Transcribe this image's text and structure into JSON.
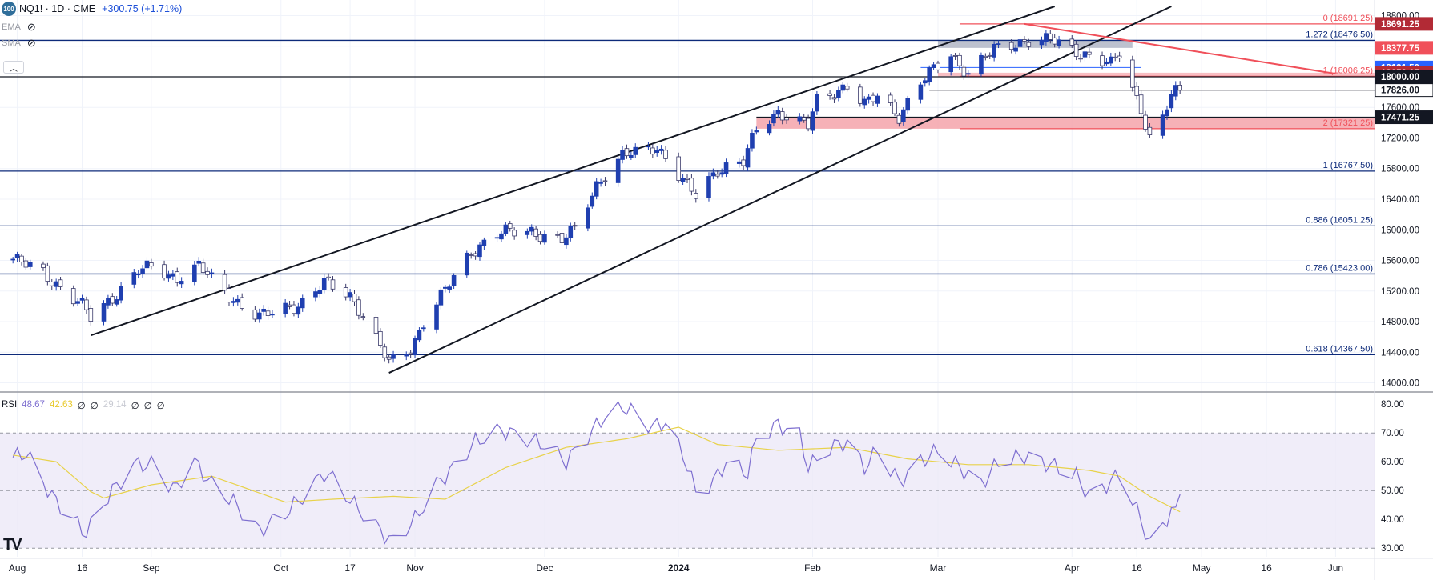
{
  "header": {
    "icon_text": "100",
    "symbol": "NQ1! · 1D · CME",
    "change": "+300.75 (+1.71%)"
  },
  "indicators": {
    "ema": "EMA",
    "sma": "SMA",
    "eye_icon": "eye-off-icon",
    "collapse_icon": "chevron-up-icon"
  },
  "rsi_legend": {
    "name": "RSI",
    "value": "48.67",
    "ma": "42.63",
    "z1": "∅",
    "z2": "∅",
    "v3": "29.14",
    "z3": "∅",
    "z4": "∅",
    "z5": "∅"
  },
  "logo": "TV",
  "colors": {
    "candle_up": "#1f3fb0",
    "candle_down_fill": "#ffffff",
    "candle_down_border": "#3a3a6a",
    "fib_line": "#0d2a7a",
    "red_line": "#f0505a",
    "red_zone": "#f5a3aa",
    "grey_zone": "#9aa0b4",
    "rsi_line": "#7e6fd0",
    "rsi_ma": "#e8d24a",
    "rsi_band": "#ece9f7"
  },
  "chart_data": [
    {
      "type": "candlestick",
      "title": "NQ1! · 1D · CME",
      "y_axis_ticks": [
        14000,
        14400,
        14800,
        15200,
        15600,
        16000,
        16400,
        16800,
        17200,
        17600,
        18000,
        18400,
        18800
      ],
      "y_axis_tick_labels": [
        "14000.00",
        "14400.00",
        "14800.00",
        "15200.00",
        "15600.00",
        "16000.00",
        "16400.00",
        "16800.00",
        "17200.00",
        "17600.00",
        "18000.00",
        "18400.00",
        "18800.00"
      ],
      "ylim": [
        13880,
        18920
      ],
      "x_axis_labels": [
        {
          "label": "Aug",
          "date": "2023-08-01"
        },
        {
          "label": "16",
          "date": "2023-08-16"
        },
        {
          "label": "Sep",
          "date": "2023-09-01"
        },
        {
          "label": "Oct",
          "date": "2023-10-01"
        },
        {
          "label": "17",
          "date": "2023-10-17"
        },
        {
          "label": "Nov",
          "date": "2023-11-01"
        },
        {
          "label": "Dec",
          "date": "2023-12-01"
        },
        {
          "label": "2024",
          "date": "2024-01-01"
        },
        {
          "label": "Feb",
          "date": "2024-02-01"
        },
        {
          "label": "Mar",
          "date": "2024-03-01"
        },
        {
          "label": "Apr",
          "date": "2024-04-01"
        },
        {
          "label": "16",
          "date": "2024-04-16"
        },
        {
          "label": "May",
          "date": "2024-05-01"
        },
        {
          "label": "16",
          "date": "2024-05-16"
        },
        {
          "label": "Jun",
          "date": "2024-06-01"
        }
      ],
      "xlim": [
        "2023-07-28",
        "2024-06-10"
      ],
      "price_path": [
        [
          "2023-07-28",
          15700
        ],
        [
          "2023-08-02",
          15560
        ],
        [
          "2023-08-07",
          15450
        ],
        [
          "2023-08-11",
          15250
        ],
        [
          "2023-08-16",
          15000
        ],
        [
          "2023-08-18",
          14850
        ],
        [
          "2023-08-23",
          15120
        ],
        [
          "2023-08-29",
          15460
        ],
        [
          "2023-09-01",
          15500
        ],
        [
          "2023-09-07",
          15380
        ],
        [
          "2023-09-12",
          15520
        ],
        [
          "2023-09-15",
          15350
        ],
        [
          "2023-09-20",
          15100
        ],
        [
          "2023-09-26",
          14850
        ],
        [
          "2023-10-02",
          14980
        ],
        [
          "2023-10-06",
          15050
        ],
        [
          "2023-10-11",
          15300
        ],
        [
          "2023-10-13",
          15250
        ],
        [
          "2023-10-17",
          15150
        ],
        [
          "2023-10-20",
          14900
        ],
        [
          "2023-10-26",
          14250
        ],
        [
          "2023-10-31",
          14450
        ],
        [
          "2023-11-03",
          14800
        ],
        [
          "2023-11-08",
          15200
        ],
        [
          "2023-11-14",
          15720
        ],
        [
          "2023-11-20",
          15950
        ],
        [
          "2023-11-28",
          15990
        ],
        [
          "2023-12-05",
          15850
        ],
        [
          "2023-12-08",
          16000
        ],
        [
          "2023-12-13",
          16600
        ],
        [
          "2023-12-19",
          16950
        ],
        [
          "2023-12-27",
          17100
        ],
        [
          "2024-01-03",
          16550
        ],
        [
          "2024-01-05",
          16450
        ],
        [
          "2024-01-10",
          16800
        ],
        [
          "2024-01-16",
          16880
        ],
        [
          "2024-01-19",
          17300
        ],
        [
          "2024-01-24",
          17550
        ],
        [
          "2024-01-31",
          17350
        ],
        [
          "2024-02-02",
          17680
        ],
        [
          "2024-02-09",
          17900
        ],
        [
          "2024-02-13",
          17620
        ],
        [
          "2024-02-16",
          17750
        ],
        [
          "2024-02-21",
          17500
        ],
        [
          "2024-02-26",
          17920
        ],
        [
          "2024-03-04",
          18300
        ],
        [
          "2024-03-08",
          18050
        ],
        [
          "2024-03-14",
          18350
        ],
        [
          "2024-03-21",
          18480
        ],
        [
          "2024-03-28",
          18460
        ],
        [
          "2024-04-04",
          18300
        ],
        [
          "2024-04-10",
          18150
        ],
        [
          "2024-04-12",
          18300
        ],
        [
          "2024-04-15",
          17850
        ],
        [
          "2024-04-17",
          17600
        ],
        [
          "2024-04-19",
          17200
        ],
        [
          "2024-04-22",
          17450
        ],
        [
          "2024-04-24",
          17750
        ],
        [
          "2024-04-26",
          17826
        ]
      ],
      "horizontal_levels": [
        {
          "label": "0 (18691.25)",
          "value": 18691.25,
          "color": "red"
        },
        {
          "label": "1.272 (18476.50)",
          "value": 18476.5,
          "color": "blue"
        },
        {
          "label": "1 (18006.25)",
          "value": 18006.25,
          "color": "red"
        },
        {
          "label": "2 (17321.25)",
          "value": 17321.25,
          "color": "red"
        },
        {
          "label": "1 (16767.50)",
          "value": 16767.5,
          "color": "blue"
        },
        {
          "label": "0.886 (16051.25)",
          "value": 16051.25,
          "color": "blue"
        },
        {
          "label": "0.786 (15423.00)",
          "value": 15423.0,
          "color": "blue"
        },
        {
          "label": "0.618 (14367.50)",
          "value": 14367.5,
          "color": "blue"
        }
      ],
      "price_tags": [
        {
          "text": "18691.25",
          "value": 18691.25,
          "bg": "#b22a35"
        },
        {
          "text": "18377.75",
          "value": 18377.75,
          "bg": "#f0505a"
        },
        {
          "text": "18121.50",
          "value": 18121.5,
          "bg": "#2962ff"
        },
        {
          "text": "18053.25",
          "value": 18053.25,
          "bg": "#b22a35"
        },
        {
          "text": "18000.00",
          "value": 18000.0,
          "bg": "#131722"
        },
        {
          "text": "17826.00",
          "value": 17826.0,
          "bg": "#ffffff"
        },
        {
          "text": "17471.25",
          "value": 17471.25,
          "bg": "#131722"
        }
      ]
    },
    {
      "type": "line",
      "title": "RSI",
      "y_axis_ticks": [
        30,
        40,
        50,
        60,
        70,
        80
      ],
      "y_axis_tick_labels": [
        "30.00",
        "40.00",
        "50.00",
        "60.00",
        "70.00",
        "80.00"
      ],
      "ylim": [
        27,
        82
      ],
      "band": [
        30,
        70
      ],
      "rsi_path": [
        [
          "2023-07-28",
          60
        ],
        [
          "2023-08-03",
          63
        ],
        [
          "2023-08-09",
          48
        ],
        [
          "2023-08-14",
          40
        ],
        [
          "2023-08-17",
          35
        ],
        [
          "2023-08-22",
          48
        ],
        [
          "2023-08-28",
          59
        ],
        [
          "2023-09-01",
          59
        ],
        [
          "2023-09-06",
          50
        ],
        [
          "2023-09-11",
          60
        ],
        [
          "2023-09-15",
          52
        ],
        [
          "2023-09-20",
          46
        ],
        [
          "2023-09-26",
          36
        ],
        [
          "2023-10-02",
          42
        ],
        [
          "2023-10-06",
          48
        ],
        [
          "2023-10-11",
          56
        ],
        [
          "2023-10-13",
          54
        ],
        [
          "2023-10-18",
          45
        ],
        [
          "2023-10-24",
          36
        ],
        [
          "2023-10-27",
          32
        ],
        [
          "2023-11-01",
          40
        ],
        [
          "2023-11-06",
          52
        ],
        [
          "2023-11-10",
          58
        ],
        [
          "2023-11-15",
          67
        ],
        [
          "2023-11-21",
          71
        ],
        [
          "2023-11-27",
          68
        ],
        [
          "2023-12-01",
          66
        ],
        [
          "2023-12-06",
          60
        ],
        [
          "2023-12-11",
          69
        ],
        [
          "2023-12-15",
          76
        ],
        [
          "2023-12-20",
          79
        ],
        [
          "2023-12-26",
          72
        ],
        [
          "2023-12-29",
          74
        ],
        [
          "2024-01-03",
          59
        ],
        [
          "2024-01-05",
          49
        ],
        [
          "2024-01-09",
          53
        ],
        [
          "2024-01-12",
          60
        ],
        [
          "2024-01-17",
          56
        ],
        [
          "2024-01-19",
          68
        ],
        [
          "2024-01-24",
          73
        ],
        [
          "2024-01-29",
          69
        ],
        [
          "2024-01-31",
          58
        ],
        [
          "2024-02-05",
          65
        ],
        [
          "2024-02-09",
          67
        ],
        [
          "2024-02-13",
          58
        ],
        [
          "2024-02-16",
          64
        ],
        [
          "2024-02-21",
          53
        ],
        [
          "2024-02-26",
          60
        ],
        [
          "2024-03-01",
          64
        ],
        [
          "2024-03-06",
          58
        ],
        [
          "2024-03-11",
          52
        ],
        [
          "2024-03-15",
          60
        ],
        [
          "2024-03-21",
          62
        ],
        [
          "2024-03-27",
          59
        ],
        [
          "2024-04-02",
          55
        ],
        [
          "2024-04-05",
          48
        ],
        [
          "2024-04-10",
          53
        ],
        [
          "2024-04-12",
          56
        ],
        [
          "2024-04-15",
          46
        ],
        [
          "2024-04-17",
          40
        ],
        [
          "2024-04-19",
          31
        ],
        [
          "2024-04-22",
          38
        ],
        [
          "2024-04-24",
          43
        ],
        [
          "2024-04-25",
          42
        ],
        [
          "2024-04-26",
          48.67
        ]
      ],
      "ma_path": [
        [
          "2023-07-28",
          63
        ],
        [
          "2023-08-10",
          60
        ],
        [
          "2023-08-20",
          47
        ],
        [
          "2023-09-01",
          52
        ],
        [
          "2023-09-15",
          55
        ],
        [
          "2023-10-02",
          46
        ],
        [
          "2023-10-13",
          47
        ],
        [
          "2023-10-27",
          48
        ],
        [
          "2023-11-08",
          47
        ],
        [
          "2023-11-22",
          58
        ],
        [
          "2023-12-06",
          65
        ],
        [
          "2023-12-20",
          68
        ],
        [
          "2024-01-01",
          72
        ],
        [
          "2024-01-10",
          66
        ],
        [
          "2024-01-24",
          64
        ],
        [
          "2024-02-09",
          65
        ],
        [
          "2024-02-23",
          61
        ],
        [
          "2024-03-08",
          59
        ],
        [
          "2024-03-22",
          59
        ],
        [
          "2024-04-05",
          57
        ],
        [
          "2024-04-12",
          55
        ],
        [
          "2024-04-19",
          48
        ],
        [
          "2024-04-26",
          42.63
        ]
      ]
    }
  ]
}
